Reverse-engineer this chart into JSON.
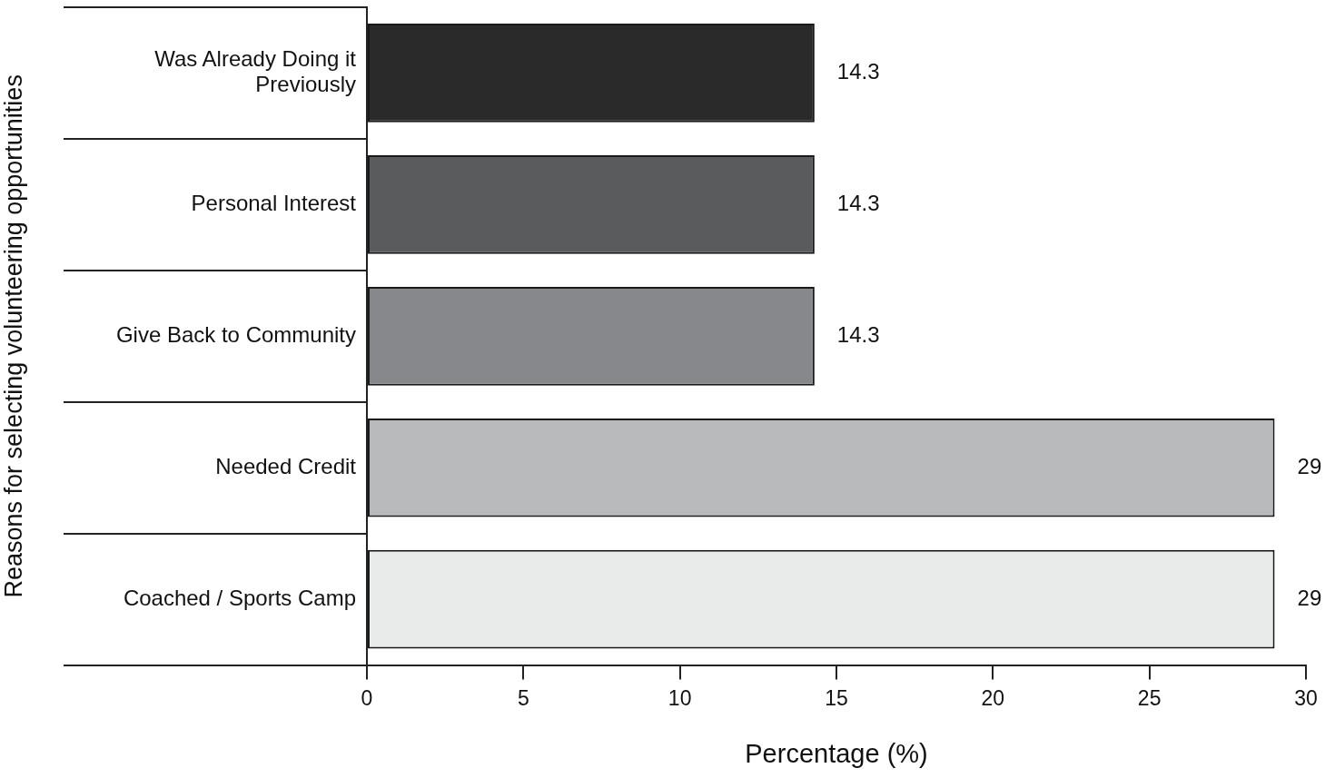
{
  "chart_data": {
    "type": "bar",
    "orientation": "horizontal",
    "xlabel": "Percentage (%)",
    "ylabel": "Reasons for selecting volunteering opportunities",
    "categories": [
      "Was Already Doing it Previously",
      "Personal Interest",
      "Give Back to Community",
      "Needed Credit",
      "Coached / Sports Camp"
    ],
    "values": [
      14.3,
      14.3,
      14.3,
      29,
      29
    ],
    "colors": [
      "#2b2a2b",
      "#5a5b5d",
      "#87888b",
      "#b9babc",
      "#e9eaea"
    ],
    "xlim": [
      0,
      30
    ],
    "xticks": [
      0,
      5,
      10,
      15,
      20,
      25,
      30
    ],
    "data_labels": true,
    "grid": false,
    "legend": false
  }
}
